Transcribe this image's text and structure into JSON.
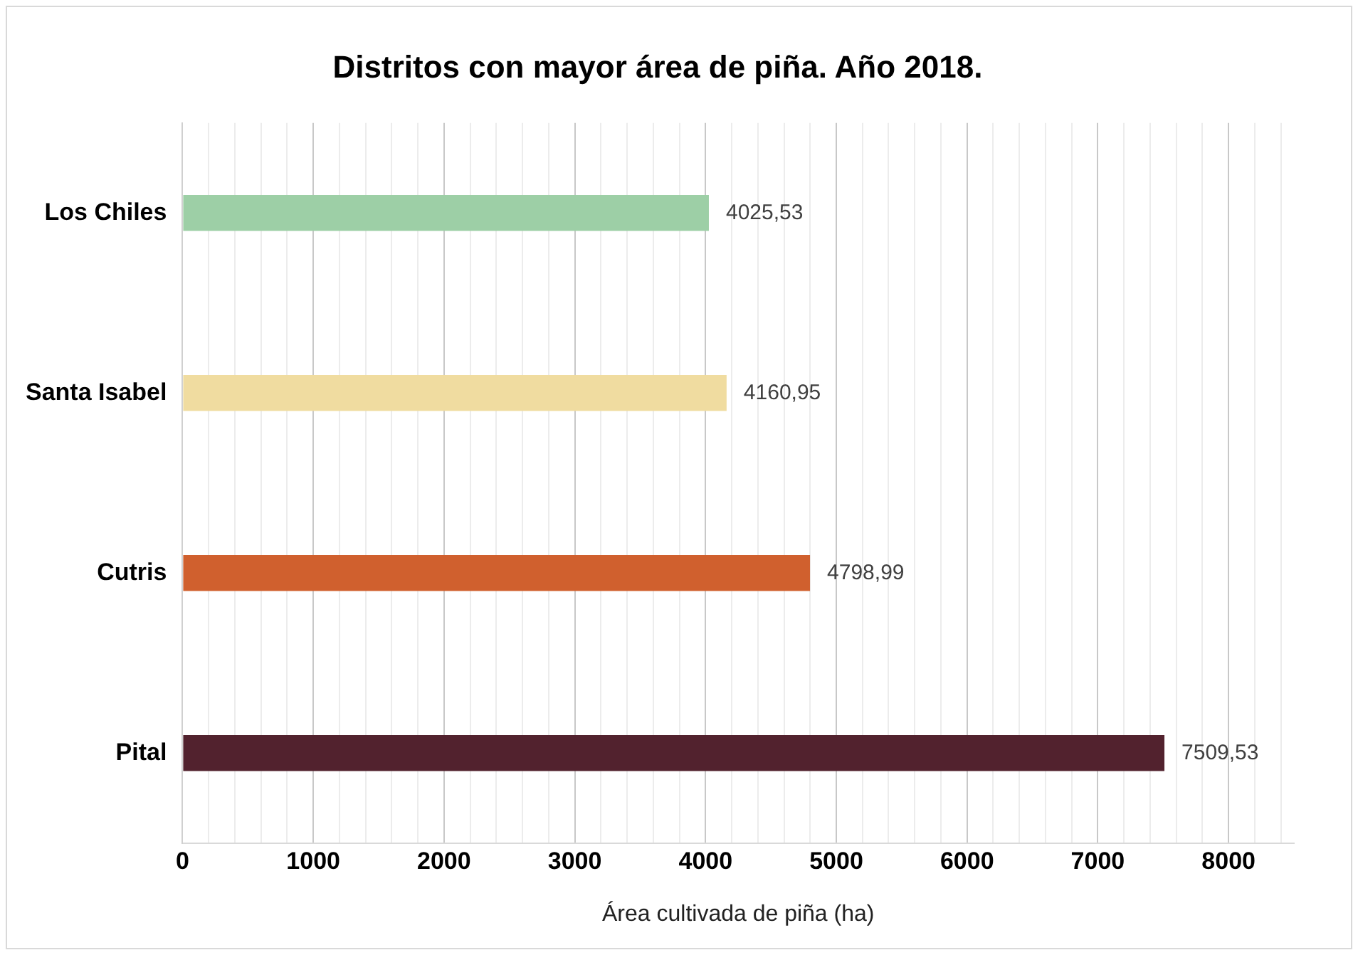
{
  "chart_data": {
    "type": "bar",
    "orientation": "horizontal",
    "title": "Distritos con mayor área de piña. Año 2018.",
    "xlabel": "Área cultivada de piña (ha)",
    "categories": [
      "Los Chiles",
      "Santa Isabel",
      "Cutris",
      "Pital"
    ],
    "values": [
      4025.53,
      4160.95,
      4798.99,
      7509.53
    ],
    "colors": [
      "#9dcfa6",
      "#f0dca0",
      "#d0602e",
      "#52222e"
    ],
    "value_labels": [
      "4025,53",
      "4160,95",
      "4798,99",
      "7509,53"
    ],
    "xlim": [
      0,
      8500
    ],
    "xticks": [
      0,
      {
        "value": 200,
        "label": null
      },
      {
        "value": 400,
        "label": null
      },
      {
        "value": 600,
        "label": null
      },
      {
        "value": 800,
        "label": null
      },
      1000,
      {
        "value": 1200,
        "label": null
      },
      {
        "value": 1400,
        "label": null
      },
      {
        "value": 1600,
        "label": null
      },
      {
        "value": 1800,
        "label": null
      },
      2000,
      {
        "value": 2200,
        "label": null
      },
      {
        "value": 2400,
        "label": null
      },
      {
        "value": 2600,
        "label": null
      },
      {
        "value": 2800,
        "label": null
      },
      3000,
      {
        "value": 3200,
        "label": null
      },
      {
        "value": 3400,
        "label": null
      },
      {
        "value": 3600,
        "label": null
      },
      {
        "value": 3800,
        "label": null
      },
      4000,
      {
        "value": 4200,
        "label": null
      },
      {
        "value": 4400,
        "label": null
      },
      {
        "value": 4600,
        "label": null
      },
      {
        "value": 4800,
        "label": null
      },
      5000,
      {
        "value": 5200,
        "label": null
      },
      {
        "value": 5400,
        "label": null
      },
      {
        "value": 5600,
        "label": null
      },
      {
        "value": 5800,
        "label": null
      },
      6000,
      {
        "value": 6200,
        "label": null
      },
      {
        "value": 6400,
        "label": null
      },
      {
        "value": 6600,
        "label": null
      },
      {
        "value": 6800,
        "label": null
      },
      7000,
      {
        "value": 7200,
        "label": null
      },
      {
        "value": 7400,
        "label": null
      },
      {
        "value": 7600,
        "label": null
      },
      {
        "value": 7800,
        "label": null
      },
      8000,
      {
        "value": 8200,
        "label": null
      },
      {
        "value": 8400,
        "label": null
      }
    ],
    "grid": "x",
    "legend": false
  }
}
